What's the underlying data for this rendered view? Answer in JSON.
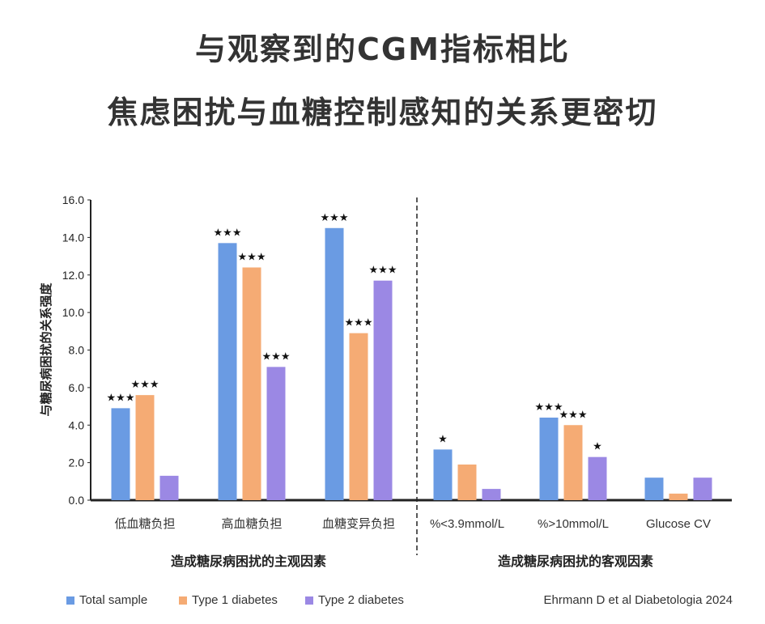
{
  "title_line1": "与观察到的CGM指标相比",
  "title_line2": "焦虑困扰与血糖控制感知的关系更密切",
  "source": "Ehrmann D et al Diabetologia 2024",
  "colors": {
    "total": "#6a9be3",
    "type1": "#f5ab74",
    "type2": "#9b88e4"
  },
  "chart_data": {
    "type": "bar",
    "ylabel": "与糖尿病困扰的关系强度",
    "ylim": [
      0,
      16
    ],
    "yticks": [
      "0.0",
      "2.0",
      "4.0",
      "6.0",
      "8.0",
      "10.0",
      "12.0",
      "14.0",
      "16.0"
    ],
    "categories": [
      "低血糖负担",
      "高血糖负担",
      "血糖变异负担",
      "%<3.9mmol/L",
      "%>10mmol/L",
      "Glucose CV"
    ],
    "groups": [
      {
        "label": "造成糖尿病困扰的主观因素",
        "categories": [
          0,
          1,
          2
        ]
      },
      {
        "label": "造成糖尿病困扰的客观因素",
        "categories": [
          3,
          4,
          5
        ]
      }
    ],
    "series": [
      {
        "name": "Total sample",
        "color": "#6a9be3",
        "values": [
          4.9,
          13.7,
          14.5,
          2.7,
          4.4,
          1.2
        ],
        "significance": [
          "***",
          "***",
          "***",
          "*",
          "***",
          ""
        ]
      },
      {
        "name": "Type 1 diabetes",
        "color": "#f5ab74",
        "values": [
          5.6,
          12.4,
          8.9,
          1.9,
          4.0,
          0.35
        ],
        "significance": [
          "***",
          "***",
          "***",
          "",
          "***",
          ""
        ]
      },
      {
        "name": "Type 2 diabetes",
        "color": "#9b88e4",
        "values": [
          1.3,
          7.1,
          11.7,
          0.6,
          2.3,
          1.2
        ],
        "significance": [
          "",
          "***",
          "***",
          "",
          "*",
          ""
        ]
      }
    ],
    "legend_position": "bottom-left",
    "grid": false
  }
}
